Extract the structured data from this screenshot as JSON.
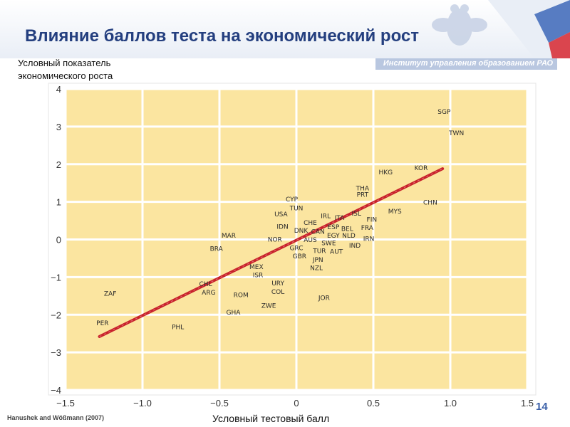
{
  "slide": {
    "title": "Влияние баллов теста на экономический рост",
    "institute": "Институт управления образованием РАО",
    "y_axis_caption_line1": "Условный показатель",
    "y_axis_caption_line2": "экономического роста",
    "x_axis_caption": "Условный тестовый балл",
    "credit": "Hanushek and Wößmann (2007)",
    "page_number": "14"
  },
  "colors": {
    "title": "#243f7f",
    "plot_bg": "#fbe5a0",
    "grid": "#ffffff",
    "trend": "#c8232b",
    "label": "#2a2a2a",
    "page_number": "#3a5fa8"
  },
  "chart_data": {
    "type": "scatter",
    "xlabel": "Условный тестовый балл",
    "ylabel": "Условный показатель экономического роста",
    "xlim": [
      -1.5,
      1.5
    ],
    "ylim": [
      -4,
      4
    ],
    "xticks": [
      -1.5,
      -1.0,
      -0.5,
      0,
      0.5,
      1.0,
      1.5
    ],
    "xtick_labels": [
      "−1.5",
      "−1.0",
      "−0.5",
      "0",
      "0.5",
      "1.0",
      "1.5"
    ],
    "yticks": [
      4,
      3,
      2,
      1,
      0,
      -1,
      -2,
      -3,
      -4
    ],
    "ytick_labels": [
      "4",
      "3",
      "2",
      "1",
      "0",
      "−1",
      "−2",
      "−3",
      "−4"
    ],
    "grid": true,
    "trend_line": {
      "x": [
        -1.28,
        0.95
      ],
      "y": [
        -2.58,
        1.88
      ]
    },
    "points": [
      {
        "label": "SGP",
        "x": 0.96,
        "y": 3.41
      },
      {
        "label": "TWN",
        "x": 1.04,
        "y": 2.85
      },
      {
        "label": "KOR",
        "x": 0.81,
        "y": 1.92
      },
      {
        "label": "HKG",
        "x": 0.58,
        "y": 1.81
      },
      {
        "label": "THA",
        "x": 0.43,
        "y": 1.38
      },
      {
        "label": "PRT",
        "x": 0.43,
        "y": 1.21
      },
      {
        "label": "CHN",
        "x": 0.87,
        "y": 1.0
      },
      {
        "label": "MYS",
        "x": 0.64,
        "y": 0.77
      },
      {
        "label": "CYP",
        "x": -0.03,
        "y": 1.09
      },
      {
        "label": "TUN",
        "x": 0.0,
        "y": 0.85
      },
      {
        "label": "USA",
        "x": -0.1,
        "y": 0.69
      },
      {
        "label": "IRL",
        "x": 0.19,
        "y": 0.64
      },
      {
        "label": "ISL",
        "x": 0.39,
        "y": 0.71
      },
      {
        "label": "ITA",
        "x": 0.28,
        "y": 0.6
      },
      {
        "label": "FIN",
        "x": 0.49,
        "y": 0.55
      },
      {
        "label": "IDN",
        "x": -0.09,
        "y": 0.36
      },
      {
        "label": "CHE",
        "x": 0.09,
        "y": 0.46
      },
      {
        "label": "ESP",
        "x": 0.24,
        "y": 0.35
      },
      {
        "label": "BEL",
        "x": 0.33,
        "y": 0.3
      },
      {
        "label": "FRA",
        "x": 0.46,
        "y": 0.33
      },
      {
        "label": "DNK",
        "x": 0.03,
        "y": 0.26
      },
      {
        "label": "CAN",
        "x": 0.14,
        "y": 0.23
      },
      {
        "label": "EGY",
        "x": 0.24,
        "y": 0.12
      },
      {
        "label": "NLD",
        "x": 0.34,
        "y": 0.12
      },
      {
        "label": "IRN",
        "x": 0.47,
        "y": 0.04
      },
      {
        "label": "MAR",
        "x": -0.44,
        "y": 0.12
      },
      {
        "label": "NOR",
        "x": -0.14,
        "y": 0.02
      },
      {
        "label": "AUS",
        "x": 0.09,
        "y": 0.01
      },
      {
        "label": "SWE",
        "x": 0.21,
        "y": -0.08
      },
      {
        "label": "IND",
        "x": 0.38,
        "y": -0.14
      },
      {
        "label": "BRA",
        "x": -0.52,
        "y": -0.23
      },
      {
        "label": "GRC",
        "x": 0.0,
        "y": -0.21
      },
      {
        "label": "TUR",
        "x": 0.15,
        "y": -0.28
      },
      {
        "label": "AUT",
        "x": 0.26,
        "y": -0.3
      },
      {
        "label": "GBR",
        "x": 0.02,
        "y": -0.43
      },
      {
        "label": "JPN",
        "x": 0.14,
        "y": -0.52
      },
      {
        "label": "NZL",
        "x": 0.13,
        "y": -0.74
      },
      {
        "label": "MEX",
        "x": -0.26,
        "y": -0.71
      },
      {
        "label": "ISR",
        "x": -0.25,
        "y": -0.93
      },
      {
        "label": "URY",
        "x": -0.12,
        "y": -1.14
      },
      {
        "label": "CHL",
        "x": -0.59,
        "y": -1.16
      },
      {
        "label": "ARG",
        "x": -0.57,
        "y": -1.39
      },
      {
        "label": "COL",
        "x": -0.12,
        "y": -1.37
      },
      {
        "label": "ZAF",
        "x": -1.21,
        "y": -1.42
      },
      {
        "label": "ROM",
        "x": -0.36,
        "y": -1.46
      },
      {
        "label": "JOR",
        "x": 0.18,
        "y": -1.53
      },
      {
        "label": "ZWE",
        "x": -0.18,
        "y": -1.74
      },
      {
        "label": "GHA",
        "x": -0.41,
        "y": -1.92
      },
      {
        "label": "PER",
        "x": -1.26,
        "y": -2.2
      },
      {
        "label": "PHL",
        "x": -0.77,
        "y": -2.31
      }
    ]
  }
}
